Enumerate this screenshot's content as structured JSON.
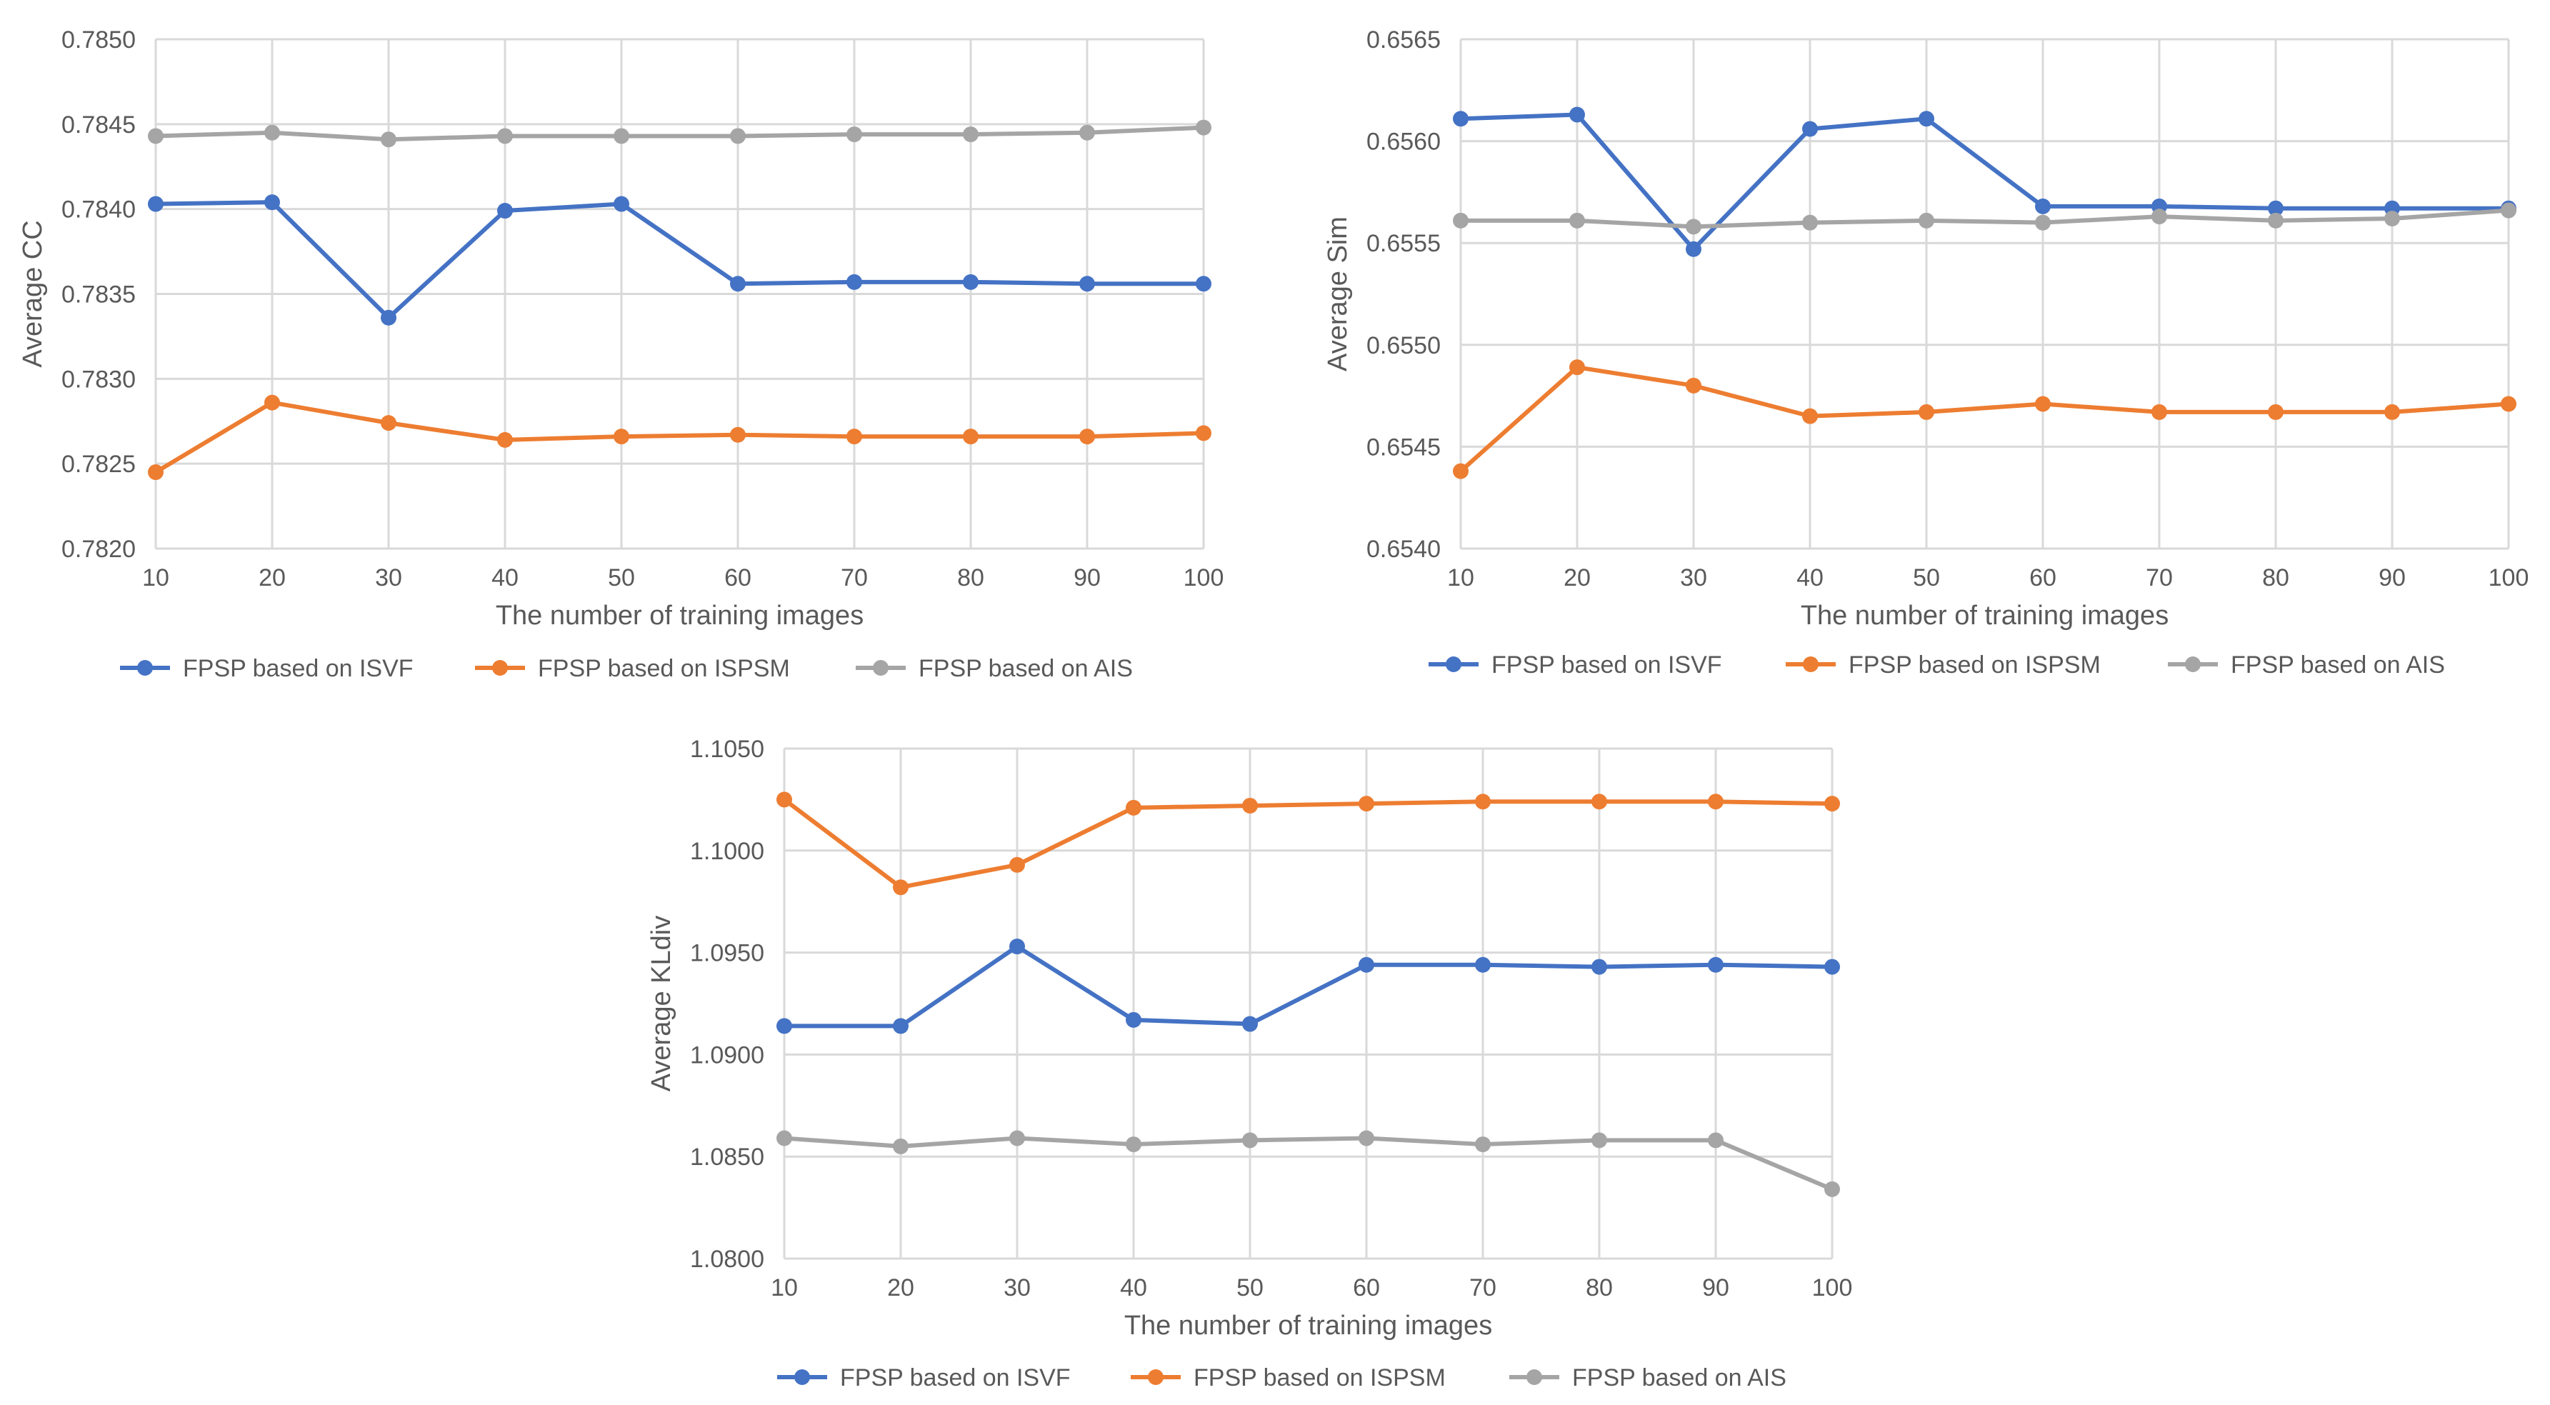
{
  "chart_data": [
    {
      "type": "line",
      "title": "",
      "xlabel": "The number of training images",
      "ylabel": "Average CC",
      "categories": [
        "10",
        "20",
        "30",
        "40",
        "50",
        "60",
        "70",
        "80",
        "90",
        "100"
      ],
      "yticks": [
        "0.7820",
        "0.7825",
        "0.7830",
        "0.7835",
        "0.7840",
        "0.7845",
        "0.7850"
      ],
      "ylim": [
        0.782,
        0.785
      ],
      "legend_position": "bottom",
      "series": [
        {
          "name": "FPSP based on ISVF",
          "color": "#4472C4",
          "values": [
            0.78403,
            0.78404,
            0.78336,
            0.78399,
            0.78403,
            0.78356,
            0.78357,
            0.78357,
            0.78356,
            0.78356
          ]
        },
        {
          "name": "FPSP based on ISPSM",
          "color": "#ED7D31",
          "values": [
            0.78245,
            0.78286,
            0.78274,
            0.78264,
            0.78266,
            0.78267,
            0.78266,
            0.78266,
            0.78266,
            0.78268
          ]
        },
        {
          "name": "FPSP based on AIS",
          "color": "#A5A5A5",
          "values": [
            0.78443,
            0.78445,
            0.78441,
            0.78443,
            0.78443,
            0.78443,
            0.78444,
            0.78444,
            0.78445,
            0.78448
          ]
        }
      ]
    },
    {
      "type": "line",
      "title": "",
      "xlabel": "The number of training images",
      "ylabel": "Average Sim",
      "categories": [
        "10",
        "20",
        "30",
        "40",
        "50",
        "60",
        "70",
        "80",
        "90",
        "100"
      ],
      "yticks": [
        "0.6540",
        "0.6545",
        "0.6550",
        "0.6555",
        "0.6560",
        "0.6565"
      ],
      "ylim": [
        0.654,
        0.6565
      ],
      "legend_position": "bottom",
      "series": [
        {
          "name": "FPSP based on ISVF",
          "color": "#4472C4",
          "values": [
            0.65611,
            0.65613,
            0.65547,
            0.65606,
            0.65611,
            0.65568,
            0.65568,
            0.65567,
            0.65567,
            0.65567
          ]
        },
        {
          "name": "FPSP based on ISPSM",
          "color": "#ED7D31",
          "values": [
            0.65438,
            0.65489,
            0.6548,
            0.65465,
            0.65467,
            0.65471,
            0.65467,
            0.65467,
            0.65467,
            0.65471
          ]
        },
        {
          "name": "FPSP based on AIS",
          "color": "#A5A5A5",
          "values": [
            0.65561,
            0.65561,
            0.65558,
            0.6556,
            0.65561,
            0.6556,
            0.65563,
            0.65561,
            0.65562,
            0.65566
          ]
        }
      ]
    },
    {
      "type": "line",
      "title": "",
      "xlabel": "The number of training images",
      "ylabel": "Average KLdiv",
      "categories": [
        "10",
        "20",
        "30",
        "40",
        "50",
        "60",
        "70",
        "80",
        "90",
        "100"
      ],
      "yticks": [
        "1.0800",
        "1.0850",
        "1.0900",
        "1.0950",
        "1.1000",
        "1.1050"
      ],
      "ylim": [
        1.08,
        1.105
      ],
      "legend_position": "bottom",
      "series": [
        {
          "name": "FPSP based on ISVF",
          "color": "#4472C4",
          "values": [
            1.0914,
            1.0914,
            1.0953,
            1.0917,
            1.0915,
            1.0944,
            1.0944,
            1.0943,
            1.0944,
            1.0943
          ]
        },
        {
          "name": "FPSP based on ISPSM",
          "color": "#ED7D31",
          "values": [
            1.1025,
            1.0982,
            1.0993,
            1.1021,
            1.1022,
            1.1023,
            1.1024,
            1.1024,
            1.1024,
            1.1023
          ]
        },
        {
          "name": "FPSP based on AIS",
          "color": "#A5A5A5",
          "values": [
            1.0859,
            1.0855,
            1.0859,
            1.0856,
            1.0858,
            1.0859,
            1.0856,
            1.0858,
            1.0858,
            1.0834
          ]
        }
      ]
    }
  ]
}
